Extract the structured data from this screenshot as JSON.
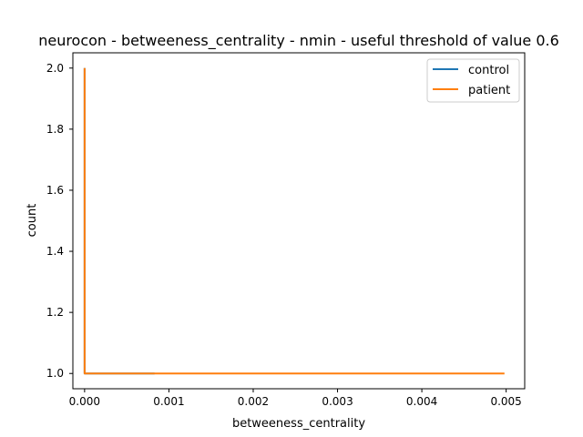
{
  "chart_data": {
    "type": "line",
    "title": "neurocon - betweeness_centrality - nmin - useful threshold of value 0.6",
    "xlabel": "betweeness_centrality",
    "ylabel": "count",
    "xlim": [
      -0.000139,
      0.00522
    ],
    "ylim": [
      0.95,
      2.05
    ],
    "x_ticks": [
      0.0,
      0.001,
      0.002,
      0.003,
      0.004,
      0.005
    ],
    "x_tick_labels": [
      "0.000",
      "0.001",
      "0.002",
      "0.003",
      "0.004",
      "0.005"
    ],
    "y_ticks": [
      1.0,
      1.2,
      1.4,
      1.6,
      1.8,
      2.0
    ],
    "y_tick_labels": [
      "1.0",
      "1.2",
      "1.4",
      "1.6",
      "1.8",
      "2.0"
    ],
    "grid": false,
    "legend_position": "top-right",
    "series": [
      {
        "name": "control",
        "color": "#1f77b4",
        "points": [
          [
            0.0,
            2.0
          ],
          [
            0.0,
            1.0
          ],
          [
            0.00083,
            1.0
          ]
        ]
      },
      {
        "name": "patient",
        "color": "#ff7f0e",
        "points": [
          [
            0.0,
            2.0
          ],
          [
            0.0,
            1.0
          ],
          [
            0.00498,
            1.0
          ]
        ]
      }
    ]
  }
}
